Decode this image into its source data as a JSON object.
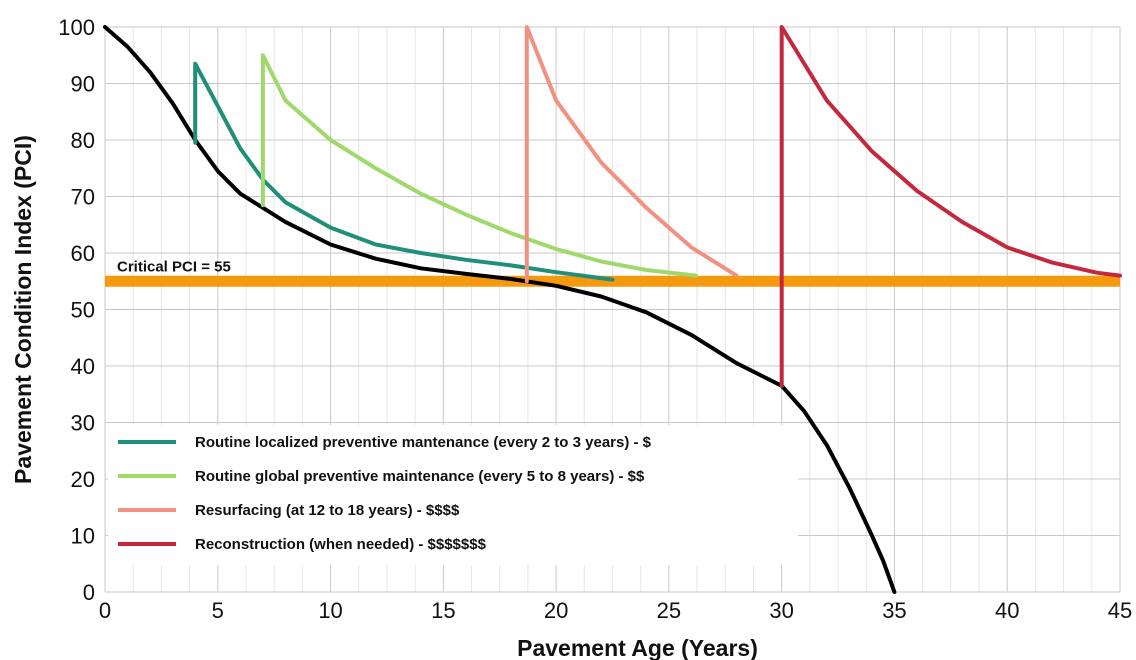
{
  "chart_data": {
    "type": "line",
    "title": "",
    "xlabel": "Pavement Age (Years)",
    "ylabel": "Pavement Condition Index (PCI)",
    "xlim": [
      0,
      45
    ],
    "ylim": [
      0,
      100
    ],
    "x_ticks": [
      0,
      5,
      10,
      15,
      20,
      25,
      30,
      35,
      40,
      45
    ],
    "y_ticks": [
      0,
      10,
      20,
      30,
      40,
      50,
      60,
      70,
      80,
      90,
      100
    ],
    "grid": true,
    "legend_position": "bottom-left",
    "threshold": {
      "label": "Critical PCI = 55",
      "value": 55,
      "color": "#f59a0f"
    },
    "series": [
      {
        "color": "#000000",
        "points": [
          [
            0,
            100
          ],
          [
            1,
            96.5
          ],
          [
            2,
            92
          ],
          [
            3,
            86.5
          ],
          [
            4,
            80
          ],
          [
            5,
            74.5
          ],
          [
            6,
            70.5
          ],
          [
            7,
            68
          ],
          [
            8,
            65.5
          ],
          [
            10,
            61.5
          ],
          [
            12,
            59
          ],
          [
            14,
            57.3
          ],
          [
            16,
            56.3
          ],
          [
            18,
            55.4
          ],
          [
            20,
            54.2
          ],
          [
            22,
            52.3
          ],
          [
            24,
            49.5
          ],
          [
            26,
            45.5
          ],
          [
            28,
            40.5
          ],
          [
            30,
            36.5
          ],
          [
            31,
            32
          ],
          [
            32,
            26
          ],
          [
            33,
            18.5
          ],
          [
            34,
            10
          ],
          [
            34.5,
            5.5
          ],
          [
            35,
            0
          ]
        ]
      },
      {
        "name": "Routine localized preventive mantenance (every 2 to 3 years) - $",
        "color": "#1f8f7a",
        "points": [
          [
            4,
            79.5
          ],
          [
            4,
            93.5
          ],
          [
            5,
            86
          ],
          [
            6,
            78.5
          ],
          [
            7,
            73
          ],
          [
            8,
            69
          ],
          [
            10,
            64.5
          ],
          [
            12,
            61.5
          ],
          [
            14,
            60
          ],
          [
            16,
            58.8
          ],
          [
            18,
            57.8
          ],
          [
            20,
            56.6
          ],
          [
            22.5,
            55.3
          ]
        ]
      },
      {
        "name": "Routine global preventive maintenance (every 5 to 8 years) - $$",
        "color": "#9fd86b",
        "points": [
          [
            7,
            68.5
          ],
          [
            7,
            95
          ],
          [
            8,
            87
          ],
          [
            10,
            80
          ],
          [
            12,
            75
          ],
          [
            14,
            70.5
          ],
          [
            16,
            66.8
          ],
          [
            18,
            63.5
          ],
          [
            20,
            60.7
          ],
          [
            22,
            58.5
          ],
          [
            24,
            57
          ],
          [
            26.2,
            56
          ]
        ]
      },
      {
        "name": "Resurfacing (at 12 to 18 years) - $$$$",
        "color": "#f29181",
        "points": [
          [
            18.7,
            55
          ],
          [
            18.7,
            100
          ],
          [
            20,
            87
          ],
          [
            22,
            76
          ],
          [
            24,
            68
          ],
          [
            26,
            61
          ],
          [
            28,
            56
          ]
        ]
      },
      {
        "name": "Reconstruction (when needed) - $$$$$$$",
        "color": "#c4283d",
        "points": [
          [
            30,
            36.5
          ],
          [
            30,
            100
          ],
          [
            32,
            87
          ],
          [
            34,
            78
          ],
          [
            36,
            71
          ],
          [
            38,
            65.5
          ],
          [
            40,
            61
          ],
          [
            42,
            58.3
          ],
          [
            44,
            56.5
          ],
          [
            45,
            56
          ]
        ]
      }
    ]
  }
}
